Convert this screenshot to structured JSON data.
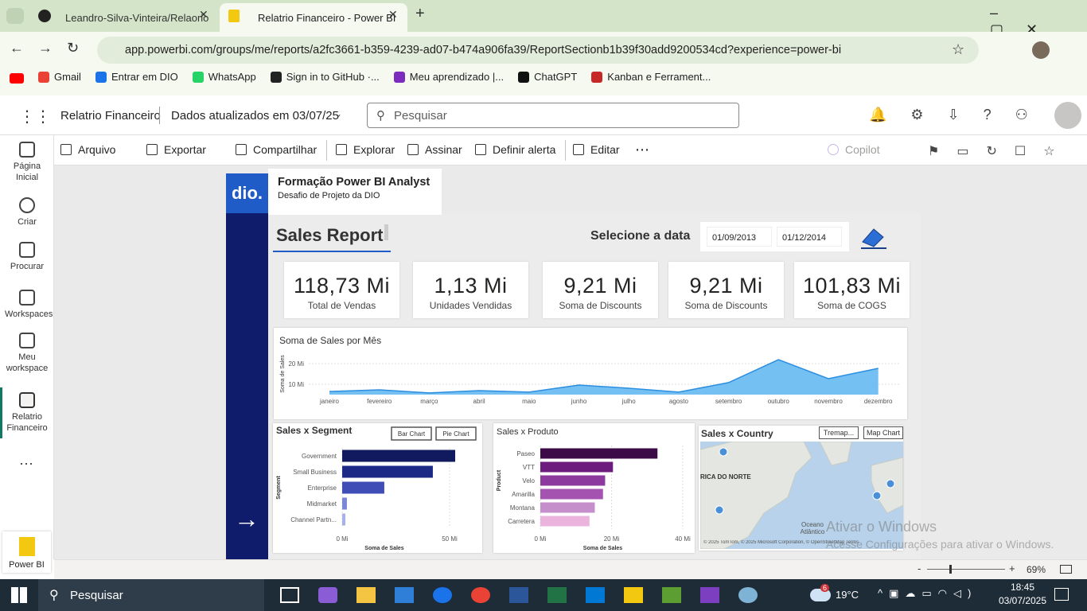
{
  "browser": {
    "tabs": [
      "Leandro-Silva-Vinteira/Relaorio",
      "Relatrio Financeiro - Power BI"
    ],
    "url": "app.powerbi.com/groups/me/reports/a2fc3661-b359-4239-ad07-b474a906fa39/ReportSectionb1b39f30add9200534cd?experience=power-bi",
    "bookmarks": [
      "Gmail",
      "Entrar em DIO",
      "WhatsApp",
      "Sign in to GitHub ·...",
      "Meu aprendizado |...",
      "ChatGPT",
      "Kanban e Ferrament..."
    ]
  },
  "app": {
    "report_name": "Relatrio Financeiro",
    "updated": "Dados atualizados em 03/07/25",
    "search": "Pesquisar",
    "nav": [
      "Página Inicial",
      "Criar",
      "Procurar",
      "Workspaces",
      "Meu workspace",
      "Relatrio Financeiro"
    ],
    "app_label": "Power BI",
    "toolbar": [
      "Arquivo",
      "Exportar",
      "Compartilhar",
      "Explorar",
      "Assinar",
      "Definir alerta",
      "Editar"
    ],
    "copilot": "Copilot",
    "zoom": "69%"
  },
  "report": {
    "logo": "dio.",
    "header_title": "Formação Power BI Analyst",
    "header_subtitle": "Desafio de Projeto da DIO",
    "page_title": "Sales Report",
    "date_label": "Selecione a data",
    "date_start": "01/09/2013",
    "date_end": "01/12/2014",
    "kpis": [
      {
        "value": "118,73 Mi",
        "label": "Total de Vendas"
      },
      {
        "value": "1,13 Mi",
        "label": "Unidades Vendidas"
      },
      {
        "value": "9,21 Mi",
        "label": "Soma de Discounts"
      },
      {
        "value": "9,21 Mi",
        "label": "Soma de Discounts"
      },
      {
        "value": "101,83 Mi",
        "label": "Soma de COGS"
      }
    ],
    "map": {
      "title": "Sales x Country",
      "buttons": [
        "Tremap...",
        "Map Chart"
      ],
      "labels": [
        "RICA DO NORTE",
        "Oceano Atlântico"
      ],
      "attribution": "© 2025 TomTom, © 2025 Microsoft Corporation, © OpenStreetMap Terms"
    }
  },
  "chart_data": [
    {
      "type": "area",
      "title": "Soma de Sales por Mês",
      "y_label": "Soma de Sales",
      "categories": [
        "janeiro",
        "fevereiro",
        "março",
        "abril",
        "maio",
        "junho",
        "julho",
        "agosto",
        "setembro",
        "outubro",
        "novembro",
        "dezembro"
      ],
      "values": [
        6.5,
        7.3,
        5.8,
        6.9,
        6.2,
        9.6,
        8.1,
        6.2,
        10.8,
        21.9,
        12.7,
        17.7
      ],
      "color": "#2b8ee0",
      "ylim": [
        5,
        24
      ],
      "yticks": [
        {
          "value": 10,
          "label": "10 Mi"
        },
        {
          "value": 20,
          "label": "20 Mi"
        }
      ],
      "grid": true
    },
    {
      "type": "hbar",
      "title": "Sales x Segment",
      "buttons": [
        "Bar Chart",
        "Pie Chart"
      ],
      "x_label": "Soma de Sales",
      "y_label": "Segment",
      "categories": [
        "Government",
        "Small Business",
        "Enterprise",
        "Midmarket",
        "Channel Partn..."
      ],
      "values": [
        52.6,
        42.2,
        19.6,
        2.2,
        1.5
      ],
      "colors": [
        "#111a5e",
        "#1c2a86",
        "#3e4eb6",
        "#7c86d6",
        "#a8b0e6"
      ],
      "xlim": [
        0,
        60
      ],
      "xticks": [
        {
          "value": 0,
          "label": "0 Mi"
        },
        {
          "value": 50,
          "label": "50 Mi"
        }
      ],
      "grid": true
    },
    {
      "type": "hbar",
      "title": "Sales x Produto",
      "x_label": "Soma de Sales",
      "y_label": "Product",
      "categories": [
        "Paseo",
        "VTT",
        "Velo",
        "Amarilla",
        "Montana",
        "Carretera"
      ],
      "values": [
        32.9,
        20.4,
        18.2,
        17.6,
        15.3,
        13.8
      ],
      "colors": [
        "#3c0a46",
        "#6b1c7c",
        "#8d3a9f",
        "#a553b1",
        "#c48fca",
        "#eab4dd"
      ],
      "xlim": [
        0,
        40
      ],
      "xticks": [
        {
          "value": 0,
          "label": "0 Mi"
        },
        {
          "value": 20,
          "label": "20 Mi"
        },
        {
          "value": 40,
          "label": "40 Mi"
        }
      ],
      "grid": true
    }
  ],
  "os": {
    "watermark_title": "Ativar o Windows",
    "watermark_text": "Acesse Configurações para ativar o Windows.",
    "search": "Pesquisar",
    "weather_badge": "6",
    "temperature": "19°C",
    "time": "18:45",
    "date": "03/07/2025"
  }
}
